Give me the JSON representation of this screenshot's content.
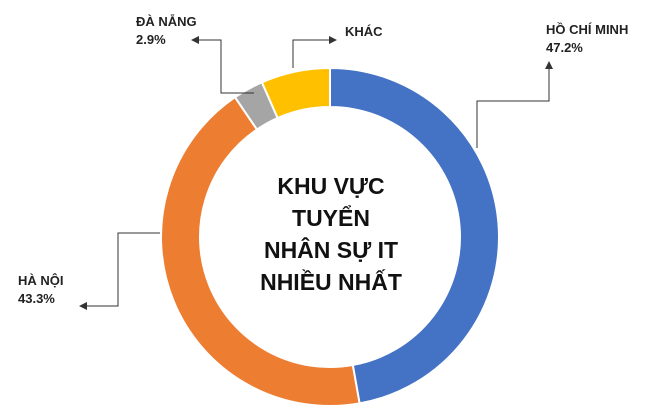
{
  "chart_data": {
    "type": "pie",
    "donut": true,
    "title_lines": [
      "KHU VỰC",
      "TUYỂN",
      "NHÂN SỰ IT",
      "NHIỀU NHẤT"
    ],
    "legend": "none",
    "slices": [
      {
        "label": "HỒ CHÍ MINH",
        "value": 47.2,
        "value_text": "47.2%",
        "color": "#4472C4"
      },
      {
        "label": "HÀ NỘI",
        "value": 43.3,
        "value_text": "43.3%",
        "color": "#ED7D31"
      },
      {
        "label": "ĐÀ NẴNG",
        "value": 2.9,
        "value_text": "2.9%",
        "color": "#A5A5A5"
      },
      {
        "label": "KHÁC",
        "value": 6.6,
        "value_text": "",
        "color": "#FFC000"
      }
    ]
  }
}
